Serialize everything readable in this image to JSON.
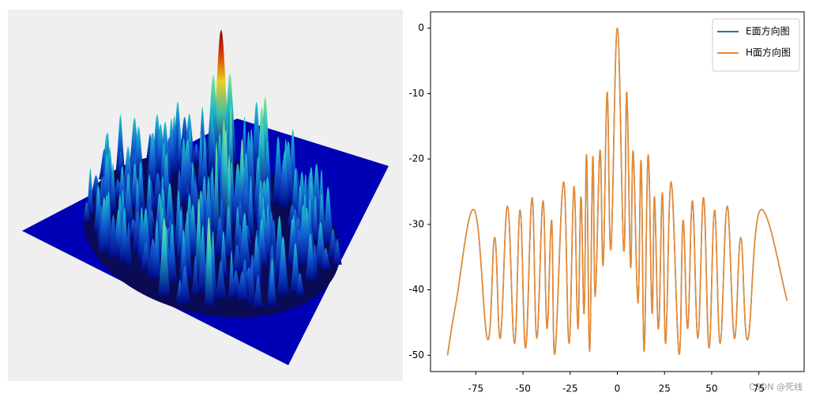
{
  "chart_data": {
    "type": "line",
    "x": [
      -90,
      -85.5,
      -75.8,
      -68.7,
      -65,
      -62,
      -58.2,
      -54.5,
      -51.5,
      -48.6,
      -45.2,
      -42.7,
      -39.4,
      -37.3,
      -34.8,
      -33.1,
      -28.5,
      -25.6,
      -23,
      -20.9,
      -19.3,
      -17.6,
      -16.3,
      -14.7,
      -13,
      -11.7,
      -9.2,
      -7.5,
      -5.4,
      -3.4,
      0,
      3.4,
      5,
      7,
      8.4,
      10.9,
      12.6,
      14.2,
      16.3,
      18.4,
      19.7,
      21.8,
      23.9,
      25.6,
      28.5,
      32.7,
      34.8,
      37.3,
      39.8,
      42.7,
      45.7,
      48.6,
      51.5,
      54.5,
      58.2,
      62,
      65.4,
      69.1,
      75.8,
      90
    ],
    "series": [
      {
        "name": "E面方向图",
        "color": "#1f77b4",
        "values": [
          -50,
          -42,
          -27.8,
          -47.6,
          -32,
          -47.4,
          -27.2,
          -48.2,
          -27.8,
          -48.9,
          -25.9,
          -47.4,
          -26.4,
          -45.9,
          -29.4,
          -49.8,
          -23.5,
          -48.2,
          -24.2,
          -46,
          -25.8,
          -43.6,
          -19.4,
          -49.4,
          -19.7,
          -41,
          -18.7,
          -36.2,
          -9.8,
          -33.8,
          0,
          -34,
          -9.8,
          -36.5,
          -18.8,
          -42,
          -20.3,
          -49.4,
          -19.4,
          -43.6,
          -25.8,
          -46,
          -25.2,
          -48.2,
          -23.5,
          -49.8,
          -29.4,
          -45.9,
          -26.4,
          -47.4,
          -25.9,
          -48.9,
          -27.8,
          -48.2,
          -27.2,
          -47.4,
          -32,
          -47.6,
          -27.8,
          -41.7
        ]
      },
      {
        "name": "H面方向图",
        "color": "#ee8a2e",
        "values": [
          -50,
          -42,
          -27.8,
          -47.6,
          -32,
          -47.4,
          -27.2,
          -48.2,
          -27.8,
          -48.9,
          -25.9,
          -47.4,
          -26.4,
          -45.9,
          -29.4,
          -49.8,
          -23.5,
          -48.2,
          -24.2,
          -46,
          -25.8,
          -43.6,
          -19.4,
          -49.4,
          -19.7,
          -41,
          -18.7,
          -36.2,
          -9.8,
          -33.8,
          0,
          -34,
          -9.8,
          -36.5,
          -18.8,
          -42,
          -20.3,
          -49.4,
          -19.4,
          -43.6,
          -25.8,
          -46,
          -25.2,
          -48.2,
          -23.5,
          -49.8,
          -29.4,
          -45.9,
          -26.4,
          -47.4,
          -25.9,
          -48.9,
          -27.8,
          -48.2,
          -27.2,
          -47.4,
          -32,
          -47.6,
          -27.8,
          -41.7
        ]
      }
    ],
    "xlim": [
      -99,
      99
    ],
    "xticks": [
      -75,
      -50,
      -25,
      0,
      25,
      50,
      75
    ],
    "ylim": [
      -52.5,
      2.5
    ],
    "yticks": [
      0,
      -10,
      -20,
      -30,
      -40,
      -50
    ],
    "legend": "upper right",
    "grid": false
  },
  "watermark": "CSDN @死线"
}
